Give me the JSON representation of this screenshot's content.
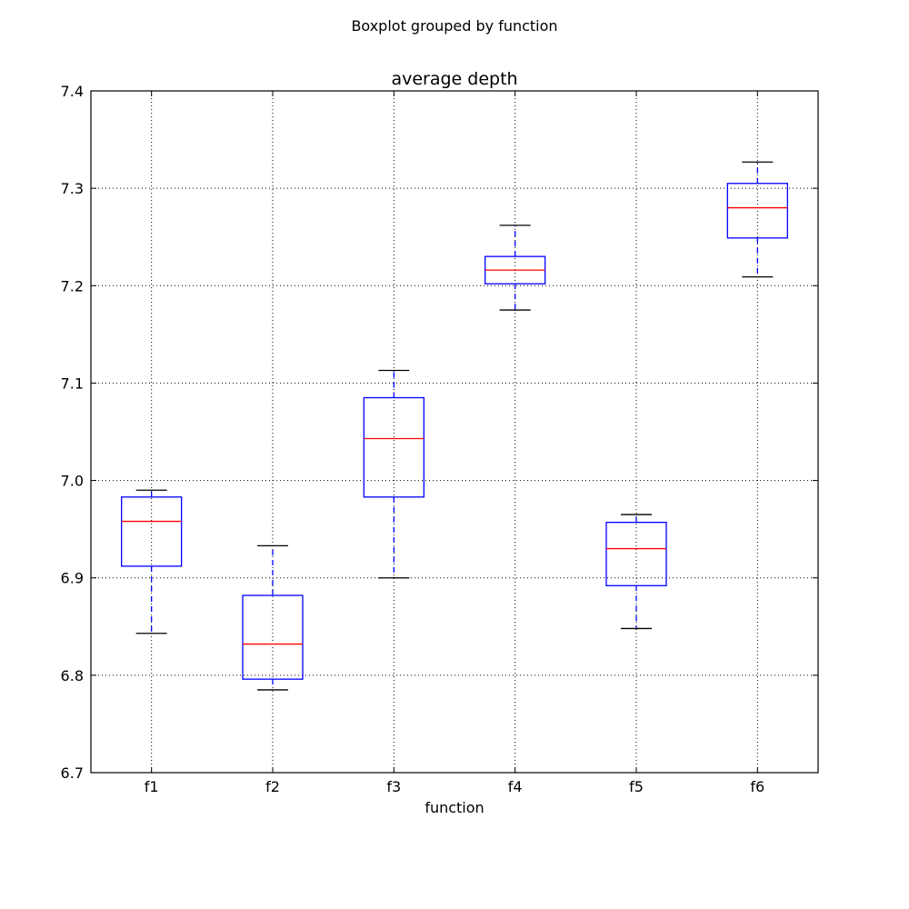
{
  "chart_data": {
    "type": "boxplot",
    "suptitle": "Boxplot grouped by function",
    "title": "average depth",
    "xlabel": "function",
    "ylabel": "",
    "ylim": [
      6.7,
      7.4
    ],
    "yticks": [
      "6.7",
      "6.8",
      "6.9",
      "7.0",
      "7.1",
      "7.2",
      "7.3",
      "7.4"
    ],
    "grid": true,
    "colors": {
      "box": "#0000ff",
      "whisker": "#0000ff",
      "median": "#ff0000",
      "cap": "#000000"
    },
    "categories": [
      "f1",
      "f2",
      "f3",
      "f4",
      "f5",
      "f6"
    ],
    "boxes": [
      {
        "label": "f1",
        "whislo": 6.843,
        "q1": 6.912,
        "med": 6.958,
        "q3": 6.983,
        "whishi": 6.99
      },
      {
        "label": "f2",
        "whislo": 6.785,
        "q1": 6.796,
        "med": 6.832,
        "q3": 6.882,
        "whishi": 6.933
      },
      {
        "label": "f3",
        "whislo": 6.9,
        "q1": 6.983,
        "med": 7.043,
        "q3": 7.085,
        "whishi": 7.113
      },
      {
        "label": "f4",
        "whislo": 7.175,
        "q1": 7.202,
        "med": 7.216,
        "q3": 7.23,
        "whishi": 7.262
      },
      {
        "label": "f5",
        "whislo": 6.848,
        "q1": 6.892,
        "med": 6.93,
        "q3": 6.957,
        "whishi": 6.965
      },
      {
        "label": "f6",
        "whislo": 7.209,
        "q1": 7.249,
        "med": 7.28,
        "q3": 7.305,
        "whishi": 7.327
      }
    ]
  }
}
